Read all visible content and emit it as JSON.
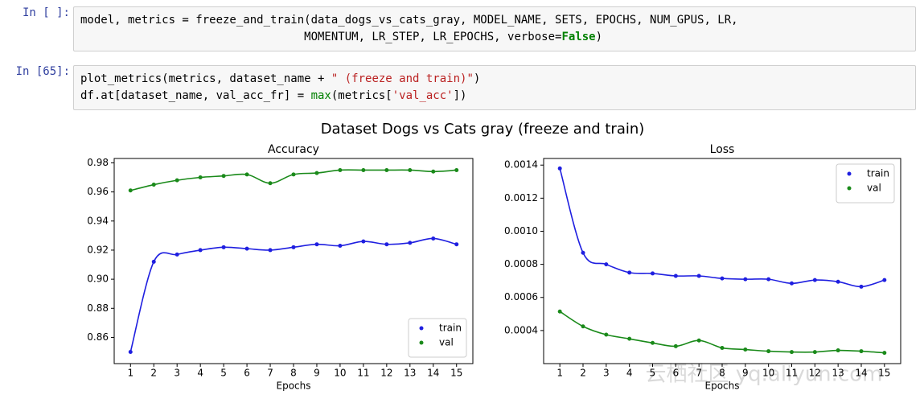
{
  "cells": [
    {
      "prompt": "In [ ]:",
      "lines": [
        "model, metrics = freeze_and_train(data_dogs_vs_cats_gray, MODEL_NAME, SETS, EPOCHS, NUM_GPUS, LR,",
        "                                 MOMENTUM, LR_STEP, LR_EPOCHS, verbose=False)"
      ]
    },
    {
      "prompt": "In [65]:",
      "lines": [
        "plot_metrics(metrics, dataset_name + \" (freeze and train)\")",
        "df.at[dataset_name, val_acc_fr] = max(metrics['val_acc'])"
      ]
    }
  ],
  "figure_title": "Dataset Dogs vs Cats gray (freeze and train)",
  "chart_data": [
    {
      "type": "line",
      "title": "Accuracy",
      "x_label": "Epochs",
      "x": [
        1,
        2,
        3,
        4,
        5,
        6,
        7,
        8,
        9,
        10,
        11,
        12,
        13,
        14,
        15
      ],
      "xlim": [
        0.3,
        15.7
      ],
      "xticks": [
        1,
        2,
        3,
        4,
        5,
        6,
        7,
        8,
        9,
        10,
        11,
        12,
        13,
        14,
        15
      ],
      "ylim": [
        0.842,
        0.983
      ],
      "yticks": [
        0.86,
        0.88,
        {
          "value": 0.9,
          "label": "0.90"
        },
        0.92,
        0.94,
        0.96,
        0.98
      ],
      "legend": "lower right",
      "series": [
        {
          "name": "train",
          "color": "#1f1fe0",
          "values": [
            0.85,
            0.912,
            0.917,
            0.92,
            0.922,
            0.921,
            0.92,
            0.922,
            0.924,
            0.923,
            0.926,
            0.924,
            0.925,
            0.928,
            0.924
          ]
        },
        {
          "name": "val",
          "color": "#1a8a1a",
          "values": [
            0.961,
            0.965,
            0.968,
            0.97,
            0.971,
            0.972,
            0.966,
            0.972,
            0.973,
            0.975,
            0.975,
            0.975,
            0.975,
            0.974,
            0.975
          ]
        }
      ]
    },
    {
      "type": "line",
      "title": "Loss",
      "x_label": "Epochs",
      "x": [
        1,
        2,
        3,
        4,
        5,
        6,
        7,
        8,
        9,
        10,
        11,
        12,
        13,
        14,
        15
      ],
      "xlim": [
        0.3,
        15.7
      ],
      "xticks": [
        1,
        2,
        3,
        4,
        5,
        6,
        7,
        8,
        9,
        10,
        11,
        12,
        13,
        14,
        15
      ],
      "ylim": [
        0.0002,
        0.00144
      ],
      "yticks": [
        0.0004,
        0.0006,
        0.0008,
        {
          "value": 0.001,
          "label": "0.0010"
        },
        0.0012,
        0.0014
      ],
      "legend": "upper right",
      "series": [
        {
          "name": "train",
          "color": "#1f1fe0",
          "values": [
            0.00138,
            0.00087,
            0.0008,
            0.00075,
            0.000745,
            0.00073,
            0.00073,
            0.000715,
            0.00071,
            0.00071,
            0.000685,
            0.000705,
            0.000695,
            0.000665,
            0.000705
          ]
        },
        {
          "name": "val",
          "color": "#1a8a1a",
          "values": [
            0.000515,
            0.000425,
            0.000375,
            0.00035,
            0.000325,
            0.000305,
            0.00034,
            0.000295,
            0.000285,
            0.000275,
            0.00027,
            0.00027,
            0.00028,
            0.000275,
            0.000265
          ]
        }
      ]
    }
  ],
  "watermark": "云栖社区 yq.aliyun.com"
}
